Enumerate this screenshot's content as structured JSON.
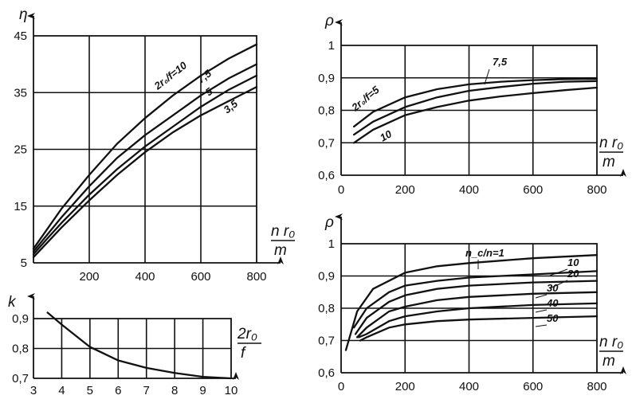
{
  "chart_data": [
    {
      "id": "eta",
      "type": "line",
      "ylabel": "η",
      "xlabel": {
        "num": "n r₀",
        "den": "m"
      },
      "xlim": [
        0,
        800
      ],
      "ylim": [
        5,
        45
      ],
      "xticks": [
        200,
        400,
        600,
        800
      ],
      "yticks": [
        5,
        15,
        25,
        35,
        45
      ],
      "grid": true,
      "curve_labels": [
        "2r₀/f=10",
        "7,5",
        "5",
        "3,5"
      ],
      "series": [
        {
          "x": [
            0,
            50,
            100,
            200,
            300,
            400,
            500,
            600,
            700,
            800
          ],
          "y": [
            7.5,
            11,
            14.5,
            20.5,
            26,
            30.5,
            34.5,
            38,
            41,
            43.5
          ]
        },
        {
          "x": [
            0,
            50,
            100,
            200,
            300,
            400,
            500,
            600,
            700,
            800
          ],
          "y": [
            7,
            10,
            13,
            18.5,
            23.5,
            27.5,
            31,
            34.5,
            37.5,
            40
          ]
        },
        {
          "x": [
            0,
            50,
            100,
            200,
            300,
            400,
            500,
            600,
            700,
            800
          ],
          "y": [
            6.5,
            9.3,
            12,
            17,
            21.5,
            25.5,
            29,
            32.5,
            35.5,
            38
          ]
        },
        {
          "x": [
            0,
            50,
            100,
            200,
            300,
            400,
            500,
            600,
            700,
            800
          ],
          "y": [
            6,
            8.6,
            11.2,
            16,
            20.5,
            24.5,
            28,
            31,
            33.5,
            36
          ]
        }
      ]
    },
    {
      "id": "rho-top",
      "type": "line",
      "ylabel": "ρ",
      "xlabel": {
        "num": "n r₀",
        "den": "m"
      },
      "xlim": [
        0,
        800
      ],
      "ylim": [
        0.6,
        1.0
      ],
      "xticks": [
        0,
        200,
        400,
        600,
        800
      ],
      "yticks": [
        0.6,
        0.7,
        0.8,
        0.9,
        1.0
      ],
      "ytick_labels": [
        "0,6",
        "0,7",
        "0,8",
        "0,9",
        "1"
      ],
      "grid": true,
      "curve_labels": [
        "2r₀/f=5",
        "7,5",
        "10"
      ],
      "series": [
        {
          "x": [
            40,
            100,
            200,
            300,
            400,
            500,
            600,
            700,
            800
          ],
          "y": [
            0.75,
            0.795,
            0.84,
            0.865,
            0.88,
            0.888,
            0.893,
            0.896,
            0.897
          ]
        },
        {
          "x": [
            40,
            100,
            200,
            300,
            400,
            500,
            600,
            700,
            800
          ],
          "y": [
            0.725,
            0.765,
            0.81,
            0.84,
            0.86,
            0.872,
            0.882,
            0.888,
            0.89
          ]
        },
        {
          "x": [
            40,
            100,
            200,
            300,
            400,
            500,
            600,
            700,
            800
          ],
          "y": [
            0.7,
            0.74,
            0.785,
            0.81,
            0.83,
            0.843,
            0.853,
            0.862,
            0.87
          ]
        }
      ]
    },
    {
      "id": "rho-bottom",
      "type": "line",
      "ylabel": "ρ",
      "xlabel": {
        "num": "n r₀",
        "den": "m"
      },
      "xlim": [
        0,
        800
      ],
      "ylim": [
        0.6,
        1.0
      ],
      "xticks": [
        0,
        200,
        400,
        600,
        800
      ],
      "yticks": [
        0.6,
        0.7,
        0.8,
        0.9,
        1.0
      ],
      "ytick_labels": [
        "0,6",
        "0,7",
        "0,8",
        "0,9",
        "1"
      ],
      "grid": true,
      "curve_labels": [
        "n_c/n=1",
        "10",
        "20",
        "30",
        "40",
        "50"
      ],
      "series": [
        {
          "x": [
            15,
            50,
            100,
            200,
            300,
            400,
            600,
            800
          ],
          "y": [
            0.67,
            0.79,
            0.86,
            0.91,
            0.93,
            0.94,
            0.955,
            0.965
          ]
        },
        {
          "x": [
            40,
            80,
            150,
            200,
            300,
            400,
            600,
            800
          ],
          "y": [
            0.74,
            0.8,
            0.85,
            0.87,
            0.885,
            0.895,
            0.905,
            0.915
          ]
        },
        {
          "x": [
            45,
            80,
            150,
            200,
            300,
            400,
            600,
            800
          ],
          "y": [
            0.72,
            0.77,
            0.82,
            0.84,
            0.86,
            0.87,
            0.88,
            0.885
          ]
        },
        {
          "x": [
            50,
            80,
            150,
            200,
            300,
            400,
            600,
            800
          ],
          "y": [
            0.71,
            0.74,
            0.79,
            0.805,
            0.825,
            0.835,
            0.845,
            0.85
          ]
        },
        {
          "x": [
            55,
            80,
            150,
            200,
            300,
            400,
            600,
            800
          ],
          "y": [
            0.71,
            0.72,
            0.76,
            0.775,
            0.79,
            0.8,
            0.81,
            0.815
          ]
        },
        {
          "x": [
            60,
            80,
            150,
            200,
            300,
            400,
            600,
            800
          ],
          "y": [
            0.7,
            0.71,
            0.74,
            0.75,
            0.76,
            0.765,
            0.77,
            0.775
          ]
        }
      ]
    },
    {
      "id": "k",
      "type": "line",
      "ylabel": "k",
      "xlabel": {
        "num": "2r₀",
        "den": "f"
      },
      "xlim": [
        3,
        10
      ],
      "ylim": [
        0.7,
        0.9
      ],
      "xticks": [
        3,
        4,
        5,
        6,
        7,
        8,
        9,
        10
      ],
      "yticks": [
        0.7,
        0.8,
        0.9
      ],
      "ytick_labels": [
        "0,7",
        "0,8",
        "0,9"
      ],
      "grid": true,
      "series": [
        {
          "x": [
            3.5,
            4,
            5,
            6,
            7,
            8,
            9,
            10
          ],
          "y": [
            0.92,
            0.88,
            0.805,
            0.76,
            0.735,
            0.718,
            0.705,
            0.7
          ]
        }
      ]
    }
  ]
}
